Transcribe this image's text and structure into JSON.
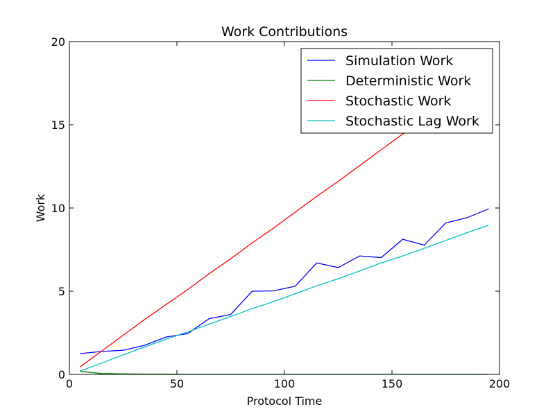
{
  "chart_data": {
    "type": "line",
    "title": "Work Contributions",
    "xlabel": "Protocol Time",
    "ylabel": "Work",
    "xlim": [
      0,
      200
    ],
    "ylim": [
      0,
      20
    ],
    "xticks": [
      0,
      50,
      100,
      150,
      200
    ],
    "yticks": [
      0,
      5,
      10,
      15,
      20
    ],
    "grid": false,
    "legend_position": "top-right",
    "x": [
      5,
      15,
      25,
      35,
      45,
      55,
      65,
      75,
      85,
      95,
      105,
      115,
      125,
      135,
      145,
      155,
      165,
      175,
      185,
      195
    ],
    "series": [
      {
        "name": "Simulation Work",
        "color": "#0000ff",
        "values": [
          1.25,
          1.38,
          1.45,
          1.75,
          2.25,
          2.45,
          3.35,
          3.6,
          5.0,
          5.02,
          5.3,
          6.7,
          6.42,
          7.12,
          7.02,
          8.12,
          7.77,
          9.1,
          9.42,
          9.95
        ]
      },
      {
        "name": "Deterministic Work",
        "color": "#008000",
        "values": [
          0.18,
          0.05,
          0.03,
          0.02,
          0.02,
          0.01,
          0.01,
          0.01,
          0.01,
          0.01,
          0.01,
          0.01,
          0.01,
          0.01,
          0.01,
          0.01,
          0.01,
          0.01,
          0.01,
          0.01
        ]
      },
      {
        "name": "Stochastic Work",
        "color": "#ff0000",
        "values": [
          0.45,
          1.4,
          2.35,
          3.3,
          4.2,
          5.1,
          6.05,
          6.95,
          7.9,
          8.8,
          9.75,
          10.7,
          11.6,
          12.55,
          13.5,
          14.45,
          15.35,
          16.3,
          17.25,
          18.15
        ]
      },
      {
        "name": "Stochastic Lag Work",
        "color": "#00bfbf",
        "values": [
          0.2,
          0.68,
          1.17,
          1.65,
          2.12,
          2.55,
          3.02,
          3.48,
          3.95,
          4.38,
          4.85,
          5.32,
          5.75,
          6.22,
          6.7,
          7.12,
          7.58,
          8.05,
          8.52,
          8.97
        ]
      }
    ]
  }
}
